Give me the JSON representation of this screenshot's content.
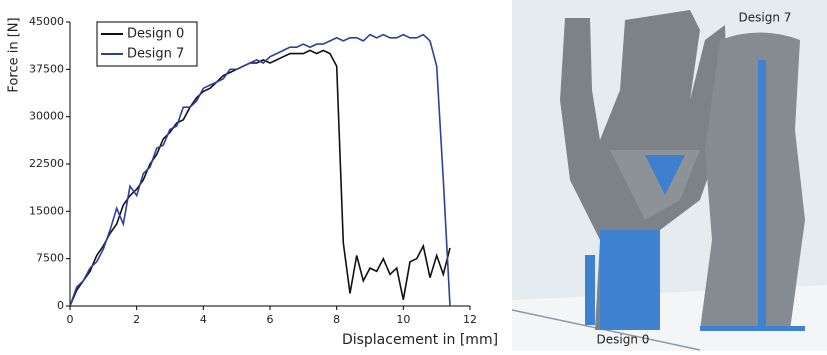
{
  "chart_data": {
    "type": "line",
    "y_label": "Force in [N]",
    "x_label": "Displacement in [mm]",
    "x": [
      0,
      0.2,
      0.4,
      0.6,
      0.8,
      1.0,
      1.2,
      1.4,
      1.6,
      1.8,
      2.0,
      2.2,
      2.4,
      2.6,
      2.8,
      3.0,
      3.2,
      3.4,
      3.6,
      3.8,
      4.0,
      4.2,
      4.4,
      4.6,
      4.8,
      5.0,
      5.2,
      5.4,
      5.6,
      5.8,
      6.0,
      6.2,
      6.4,
      6.6,
      6.8,
      7.0,
      7.2,
      7.4,
      7.6,
      7.8,
      8.0,
      8.2,
      8.4,
      8.6,
      8.8,
      9.0,
      9.2,
      9.4,
      9.6,
      9.8,
      10.0,
      10.2,
      10.4,
      10.6,
      10.8,
      11.0,
      11.2,
      11.4
    ],
    "series": [
      {
        "name": "Design 0",
        "color": "#111111",
        "values": [
          0,
          2500,
          4000,
          5500,
          8000,
          9500,
          11500,
          13000,
          16000,
          17500,
          18500,
          20000,
          22500,
          24000,
          26500,
          27500,
          29000,
          29500,
          31500,
          33000,
          34000,
          34500,
          35500,
          36500,
          37000,
          37500,
          38000,
          38500,
          38500,
          39000,
          38500,
          39000,
          39500,
          40000,
          40000,
          40000,
          40500,
          40000,
          40500,
          40000,
          38000,
          10000,
          2000,
          8000,
          4000,
          6000,
          5500,
          7500,
          5000,
          6000,
          1000,
          7000,
          7500,
          9500,
          4500,
          8000,
          5000,
          9200
        ]
      },
      {
        "name": "Design 7",
        "color": "#2e3f9e",
        "values": [
          0,
          3000,
          4000,
          6000,
          7000,
          9000,
          12000,
          15500,
          13000,
          19000,
          17500,
          21000,
          22000,
          25000,
          25500,
          28000,
          28500,
          31500,
          31500,
          32500,
          34500,
          35000,
          35500,
          36000,
          37500,
          37500,
          38000,
          38500,
          39000,
          38500,
          39500,
          40000,
          40500,
          41000,
          41000,
          41500,
          41000,
          41500,
          41500,
          42000,
          42500,
          42000,
          42500,
          42500,
          42000,
          43000,
          42500,
          43000,
          42500,
          42500,
          43000,
          42500,
          42500,
          43000,
          42000,
          38000,
          20000,
          0
        ]
      }
    ],
    "xlim": [
      0,
      12
    ],
    "xticks": [
      0,
      2,
      4,
      6,
      8,
      10,
      12
    ],
    "ylim": [
      0,
      45000
    ],
    "yticks": [
      0,
      7500,
      15000,
      22500,
      30000,
      37500,
      45000
    ],
    "grid": false,
    "legend": "upper left"
  },
  "image_labels": [
    "Design 7",
    "Design 0"
  ]
}
